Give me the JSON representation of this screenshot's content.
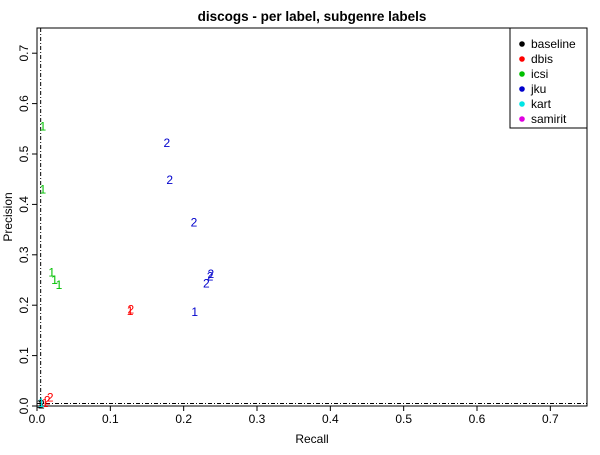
{
  "chart_data": {
    "type": "scatter",
    "title": "discogs - per label, subgenre labels",
    "xlabel": "Recall",
    "ylabel": "Precision",
    "xlim": [
      0,
      0.75
    ],
    "ylim": [
      0,
      0.75
    ],
    "x_ticks": [
      "0.0",
      "0.1",
      "0.2",
      "0.3",
      "0.4",
      "0.5",
      "0.6",
      "0.7"
    ],
    "y_ticks": [
      "0.0",
      "0.1",
      "0.2",
      "0.3",
      "0.4",
      "0.5",
      "0.6",
      "0.7"
    ],
    "grid": false,
    "legend_position": "top-right",
    "reference_lines": {
      "x": 0.005,
      "y": 0.005,
      "style": "dashed"
    },
    "series": [
      {
        "name": "baseline",
        "color": "#000000",
        "points": [
          {
            "x": 0.004,
            "y": 0.004,
            "label": "1"
          },
          {
            "x": 0.006,
            "y": 0.003,
            "label": "2"
          }
        ]
      },
      {
        "name": "dbis",
        "color": "#ff0000",
        "points": [
          {
            "x": 0.127,
            "y": 0.188,
            "label": "1"
          },
          {
            "x": 0.128,
            "y": 0.191,
            "label": "2"
          },
          {
            "x": 0.011,
            "y": 0.006,
            "label": "1"
          },
          {
            "x": 0.014,
            "y": 0.011,
            "label": "2"
          },
          {
            "x": 0.018,
            "y": 0.017,
            "label": "2"
          }
        ]
      },
      {
        "name": "icsi",
        "color": "#00c000",
        "points": [
          {
            "x": 0.008,
            "y": 0.555,
            "label": "1"
          },
          {
            "x": 0.008,
            "y": 0.43,
            "label": "1"
          },
          {
            "x": 0.02,
            "y": 0.265,
            "label": "1"
          },
          {
            "x": 0.024,
            "y": 0.25,
            "label": "1"
          },
          {
            "x": 0.03,
            "y": 0.24,
            "label": "1"
          }
        ]
      },
      {
        "name": "jku",
        "color": "#0000cc",
        "points": [
          {
            "x": 0.177,
            "y": 0.522,
            "label": "2"
          },
          {
            "x": 0.181,
            "y": 0.448,
            "label": "2"
          },
          {
            "x": 0.214,
            "y": 0.364,
            "label": "2"
          },
          {
            "x": 0.215,
            "y": 0.187,
            "label": "1"
          },
          {
            "x": 0.231,
            "y": 0.243,
            "label": "2"
          },
          {
            "x": 0.236,
            "y": 0.257,
            "label": "2"
          },
          {
            "x": 0.237,
            "y": 0.262,
            "label": "2"
          }
        ]
      },
      {
        "name": "kart",
        "color": "#00e5e5",
        "points": [
          {
            "x": 0.006,
            "y": 0.006,
            "label": "1"
          }
        ]
      },
      {
        "name": "samirit",
        "color": "#e000e0",
        "points": []
      }
    ]
  }
}
